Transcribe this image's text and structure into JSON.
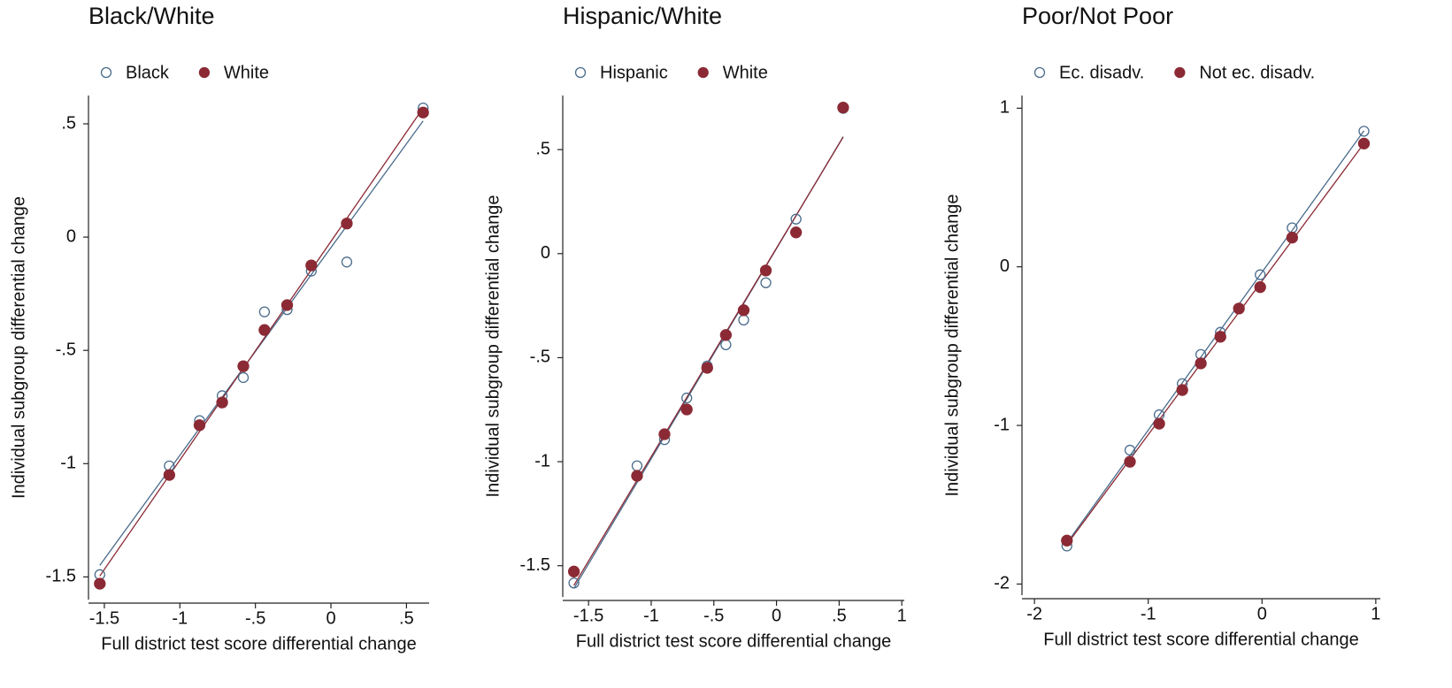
{
  "chart_data": [
    {
      "type": "scatter",
      "title": "Black/White",
      "x_label": "Full district test score differential change",
      "y_label": "Individual subgroup differential change",
      "x": [
        -1.53,
        -1.07,
        -0.87,
        -0.72,
        -0.58,
        -0.44,
        -0.29,
        -0.13,
        0.105,
        0.61
      ],
      "series": [
        {
          "name": "Black",
          "color": "#4a6c8c",
          "marker": "hollow",
          "fit": true,
          "values": [
            -1.49,
            -1.01,
            -0.81,
            -0.7,
            -0.62,
            -0.33,
            -0.32,
            -0.15,
            -0.11,
            0.57
          ]
        },
        {
          "name": "White",
          "color": "#8b2a35",
          "marker": "filled",
          "fit": true,
          "values": [
            -1.53,
            -1.05,
            -0.83,
            -0.73,
            -0.57,
            -0.41,
            -0.3,
            -0.125,
            0.06,
            0.55
          ]
        }
      ],
      "xlim": [
        -1.605,
        0.65
      ],
      "xticks": [
        -1.5,
        -1,
        {
          "value": -0.5,
          "label": "-.5"
        },
        0,
        {
          "value": 0.5,
          "label": ".5"
        }
      ],
      "ylim": [
        -1.6,
        0.625
      ],
      "yticks": [
        -1.5,
        -1,
        {
          "value": -0.5,
          "label": "-.5"
        },
        0,
        {
          "value": 0.5,
          "label": ".5"
        }
      ]
    },
    {
      "type": "scatter",
      "title": "Hispanic/White",
      "x_label": "Full district test score differential change",
      "y_label": "Individual subgroup differential change",
      "x": [
        -1.617,
        -1.113,
        -0.894,
        -0.716,
        -0.553,
        -0.404,
        -0.262,
        -0.085,
        0.156,
        0.532
      ],
      "series": [
        {
          "name": "Hispanic",
          "color": "#4a6c8c",
          "marker": "hollow",
          "fit": true,
          "values": [
            -1.583,
            -1.02,
            -0.894,
            -0.694,
            -0.54,
            -0.438,
            -0.319,
            -0.14,
            0.166,
            0.698
          ]
        },
        {
          "name": "White",
          "color": "#8b2a35",
          "marker": "filled",
          "fit": true,
          "values": [
            -1.528,
            -1.068,
            -0.868,
            -0.749,
            -0.549,
            -0.391,
            -0.272,
            -0.081,
            0.102,
            0.702
          ]
        }
      ],
      "xlim": [
        -1.706,
        1.02
      ],
      "xticks": [
        -1.5,
        -1,
        {
          "value": -0.5,
          "label": "-.5"
        },
        0,
        {
          "value": 0.5,
          "label": ".5"
        },
        1
      ],
      "ylim": [
        -1.65,
        0.76
      ],
      "yticks": [
        -1.5,
        -1,
        {
          "value": -0.5,
          "label": "-.5"
        },
        0,
        {
          "value": 0.5,
          "label": ".5"
        }
      ]
    },
    {
      "type": "scatter",
      "title": "Poor/Not Poor",
      "x_label": "Full district test score differential change",
      "y_label": "Individual subgroup differential change",
      "x": [
        -1.715,
        -1.161,
        -0.904,
        -0.701,
        -0.538,
        -0.366,
        -0.203,
        -0.016,
        0.265,
        0.896
      ],
      "series": [
        {
          "name": "Ec. disadv.",
          "color": "#4a6c8c",
          "marker": "hollow",
          "fit": true,
          "values": [
            -1.76,
            -1.156,
            -0.933,
            -0.737,
            -0.553,
            -0.413,
            -0.263,
            -0.05,
            0.246,
            0.855
          ]
        },
        {
          "name": "Not ec. disadv.",
          "color": "#8b2a35",
          "marker": "filled",
          "fit": true,
          "values": [
            -1.726,
            -1.229,
            -0.989,
            -0.777,
            -0.609,
            -0.441,
            -0.263,
            -0.128,
            0.184,
            0.777
          ]
        }
      ],
      "xlim": [
        -2.11,
        1.04
      ],
      "xticks": [
        -2,
        -1,
        0,
        1
      ],
      "ylim": [
        -2.07,
        1.08
      ],
      "yticks": [
        -2,
        -1,
        0,
        1
      ]
    }
  ]
}
